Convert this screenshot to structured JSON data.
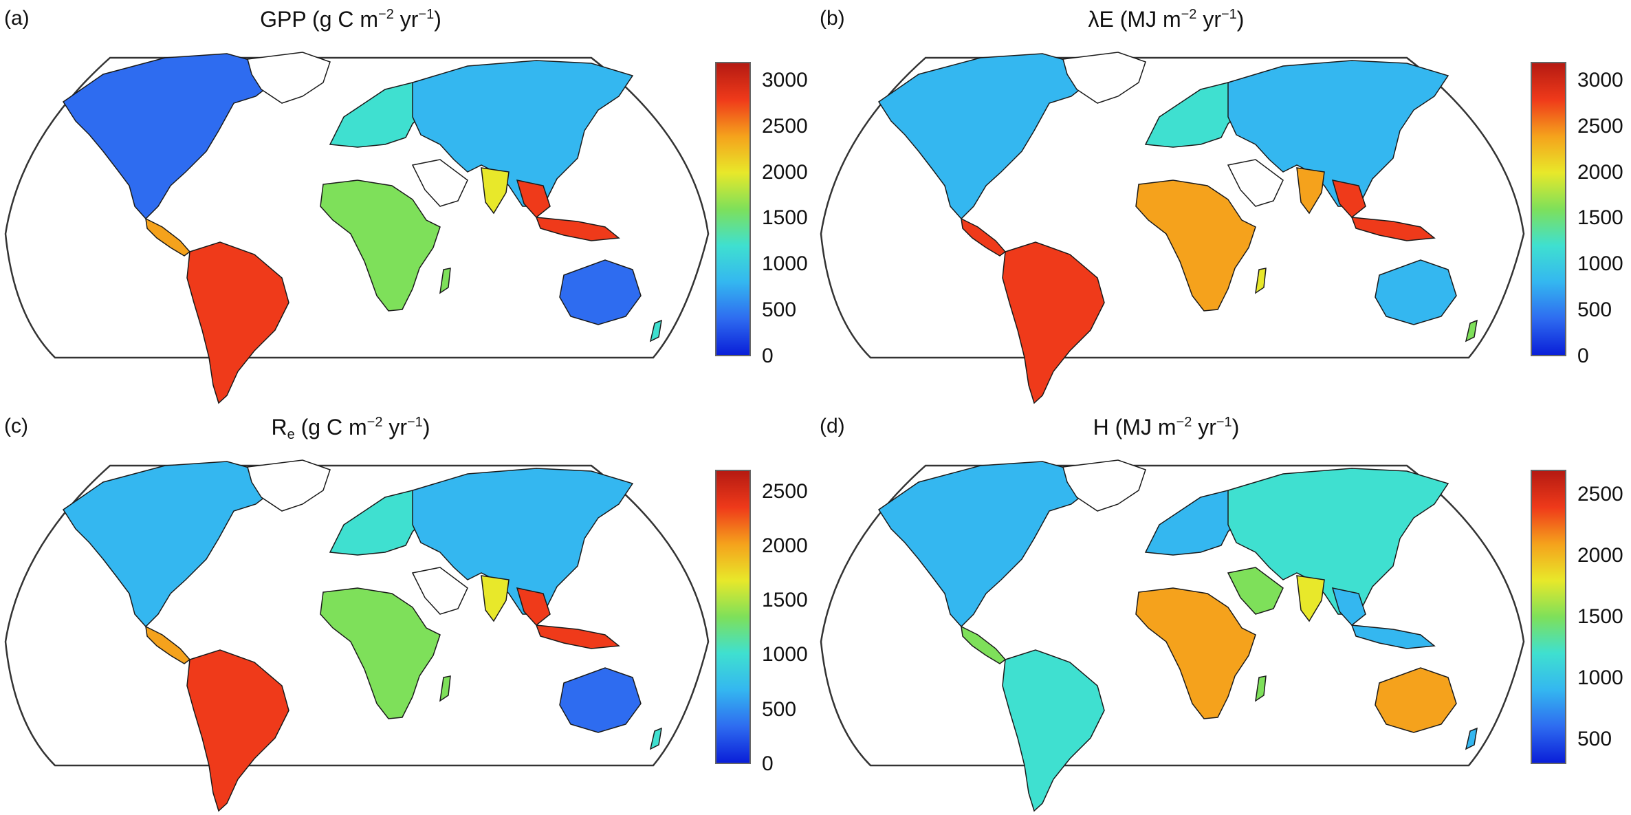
{
  "panels": [
    {
      "label": "(a)",
      "title_main": "GPP (g C m",
      "title_sup1": "−2",
      "title_mid": " yr",
      "title_sup2": "−1",
      "title_end": ")",
      "colorbar_max": 3200,
      "colorbar_min": 0,
      "ticks": [
        {
          "value": 3000,
          "label": "3000"
        },
        {
          "value": 2500,
          "label": "2500"
        },
        {
          "value": 2000,
          "label": "2000"
        },
        {
          "value": 1500,
          "label": "1500"
        },
        {
          "value": 1000,
          "label": "1000"
        },
        {
          "value": 500,
          "label": "500"
        },
        {
          "value": 0,
          "label": "0"
        }
      ]
    },
    {
      "label": "(b)",
      "title_main": "λE (MJ m",
      "title_sup1": "−2",
      "title_mid": " yr",
      "title_sup2": "−1",
      "title_end": ")",
      "colorbar_max": 3200,
      "colorbar_min": 0,
      "ticks": [
        {
          "value": 3000,
          "label": "3000"
        },
        {
          "value": 2500,
          "label": "2500"
        },
        {
          "value": 2000,
          "label": "2000"
        },
        {
          "value": 1500,
          "label": "1500"
        },
        {
          "value": 1000,
          "label": "1000"
        },
        {
          "value": 500,
          "label": "500"
        },
        {
          "value": 0,
          "label": "0"
        }
      ]
    },
    {
      "label": "(c)",
      "title_main": "R",
      "title_sub": "e",
      "title_rest": " (g C m",
      "title_sup1": "−2",
      "title_mid": " yr",
      "title_sup2": "−1",
      "title_end": ")",
      "colorbar_max": 2700,
      "colorbar_min": 0,
      "ticks": [
        {
          "value": 2500,
          "label": "2500"
        },
        {
          "value": 2000,
          "label": "2000"
        },
        {
          "value": 1500,
          "label": "1500"
        },
        {
          "value": 1000,
          "label": "1000"
        },
        {
          "value": 500,
          "label": "500"
        },
        {
          "value": 0,
          "label": "0"
        }
      ]
    },
    {
      "label": "(d)",
      "title_main": "H (MJ m",
      "title_sup1": "−2",
      "title_mid": " yr",
      "title_sup2": "−1",
      "title_end": ")",
      "colorbar_max": 2700,
      "colorbar_min": 300,
      "ticks": [
        {
          "value": 2500,
          "label": "2500"
        },
        {
          "value": 2000,
          "label": "2000"
        },
        {
          "value": 1500,
          "label": "1500"
        },
        {
          "value": 1000,
          "label": "1000"
        },
        {
          "value": 500,
          "label": "500"
        }
      ]
    }
  ],
  "colormap": [
    "#0a1fd8",
    "#2e6cf0",
    "#34b7f0",
    "#3fe0d0",
    "#7ee05a",
    "#e8e82a",
    "#f5a21c",
    "#ef3a1a",
    "#b51a12"
  ]
}
